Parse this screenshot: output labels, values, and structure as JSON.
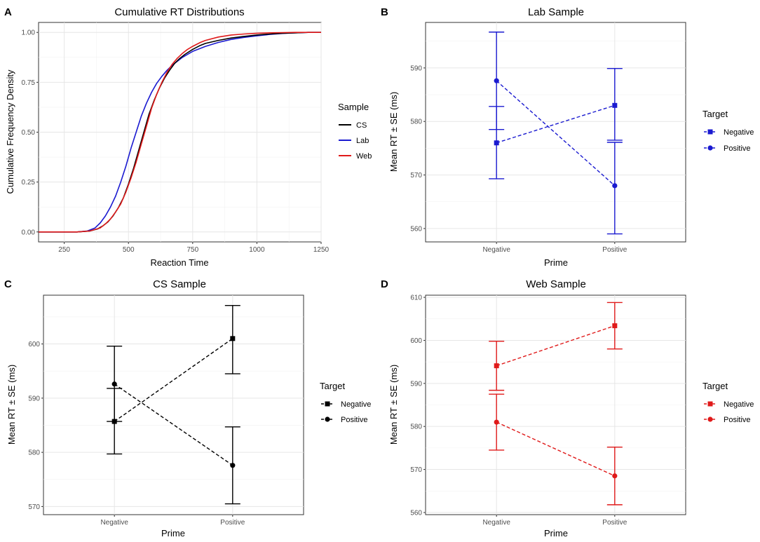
{
  "colors": {
    "CS": "#000000",
    "Lab": "#1a1ad0",
    "Web": "#e01a1a"
  },
  "chart_data": [
    {
      "id": "A",
      "panel_label": "A",
      "type": "line",
      "title": "Cumulative RT Distributions",
      "xlabel": "Reaction Time",
      "ylabel": "Cumulative Frequency Density",
      "xlim": [
        150,
        1250
      ],
      "ylim": [
        -0.05,
        1.05
      ],
      "xticks": [
        250,
        500,
        750,
        1000,
        1250
      ],
      "yticks": [
        0.0,
        0.25,
        0.5,
        0.75,
        1.0
      ],
      "ytick_labels": [
        "0.00",
        "0.25",
        "0.50",
        "0.75",
        "1.00"
      ],
      "legend_title": "Sample",
      "series": [
        {
          "name": "CS",
          "color": "#000000",
          "x": [
            150,
            300,
            350,
            380,
            400,
            420,
            440,
            460,
            480,
            500,
            520,
            540,
            560,
            580,
            600,
            620,
            640,
            660,
            680,
            700,
            720,
            750,
            780,
            800,
            850,
            900,
            950,
            1000,
            1050,
            1100,
            1150,
            1200,
            1250
          ],
          "y": [
            0.0,
            0.0,
            0.005,
            0.015,
            0.03,
            0.05,
            0.08,
            0.12,
            0.17,
            0.24,
            0.32,
            0.41,
            0.5,
            0.59,
            0.66,
            0.72,
            0.77,
            0.81,
            0.845,
            0.87,
            0.89,
            0.915,
            0.935,
            0.945,
            0.96,
            0.972,
            0.98,
            0.987,
            0.992,
            0.996,
            0.998,
            1.0,
            1.0
          ]
        },
        {
          "name": "Lab",
          "color": "#1a1ad0",
          "x": [
            150,
            300,
            340,
            370,
            390,
            410,
            430,
            450,
            470,
            490,
            510,
            530,
            550,
            570,
            590,
            610,
            630,
            650,
            670,
            690,
            710,
            750,
            800,
            850,
            900,
            950,
            1000,
            1050,
            1100,
            1150,
            1200,
            1250
          ],
          "y": [
            0.0,
            0.0,
            0.005,
            0.02,
            0.045,
            0.08,
            0.125,
            0.18,
            0.25,
            0.33,
            0.42,
            0.5,
            0.58,
            0.645,
            0.7,
            0.745,
            0.78,
            0.81,
            0.835,
            0.855,
            0.875,
            0.905,
            0.93,
            0.95,
            0.965,
            0.975,
            0.983,
            0.99,
            0.995,
            0.998,
            1.0,
            1.0
          ]
        },
        {
          "name": "Web",
          "color": "#e01a1a",
          "x": [
            150,
            300,
            350,
            390,
            410,
            430,
            450,
            470,
            490,
            510,
            530,
            550,
            570,
            590,
            610,
            630,
            650,
            670,
            690,
            710,
            730,
            750,
            780,
            800,
            850,
            900,
            950,
            1000,
            1050,
            1100,
            1150,
            1200,
            1250
          ],
          "y": [
            0.0,
            0.0,
            0.005,
            0.02,
            0.04,
            0.065,
            0.1,
            0.14,
            0.2,
            0.27,
            0.35,
            0.44,
            0.53,
            0.62,
            0.69,
            0.75,
            0.8,
            0.84,
            0.87,
            0.895,
            0.915,
            0.93,
            0.95,
            0.96,
            0.977,
            0.987,
            0.992,
            0.996,
            0.998,
            0.999,
            1.0,
            1.0,
            1.0
          ]
        }
      ]
    },
    {
      "id": "B",
      "panel_label": "B",
      "type": "errorbar",
      "title": "Lab Sample",
      "xlabel": "Prime",
      "ylabel": "Mean RT ± SE (ms)",
      "categories": [
        "Negative",
        "Positive"
      ],
      "ylim": [
        557.5,
        598.5
      ],
      "yticks": [
        560,
        570,
        580,
        590
      ],
      "color": "#1a1ad0",
      "legend_title": "Target",
      "series": [
        {
          "name": "Negative",
          "marker": "square",
          "means": [
            576.0,
            583.0
          ],
          "lower": [
            569.3,
            576.5
          ],
          "upper": [
            582.8,
            589.9
          ]
        },
        {
          "name": "Positive",
          "marker": "circle",
          "means": [
            587.6,
            568.0
          ],
          "lower": [
            578.5,
            559.0
          ],
          "upper": [
            596.7,
            576.1
          ]
        }
      ]
    },
    {
      "id": "C",
      "panel_label": "C",
      "type": "errorbar",
      "title": "CS Sample",
      "xlabel": "Prime",
      "ylabel": "Mean RT ± SE (ms)",
      "categories": [
        "Negative",
        "Positive"
      ],
      "ylim": [
        568.5,
        609.0
      ],
      "yticks": [
        570,
        580,
        590,
        600
      ],
      "color": "#000000",
      "legend_title": "Target",
      "series": [
        {
          "name": "Negative",
          "marker": "square",
          "means": [
            585.7,
            601.0
          ],
          "lower": [
            579.7,
            594.5
          ],
          "upper": [
            591.8,
            607.1
          ]
        },
        {
          "name": "Positive",
          "marker": "circle",
          "means": [
            592.6,
            577.6
          ],
          "lower": [
            585.7,
            570.5
          ],
          "upper": [
            599.6,
            584.7
          ]
        }
      ]
    },
    {
      "id": "D",
      "panel_label": "D",
      "type": "errorbar",
      "title": "Web Sample",
      "xlabel": "Prime",
      "ylabel": "Mean RT ± SE (ms)",
      "categories": [
        "Negative",
        "Positive"
      ],
      "ylim": [
        559.5,
        610.5
      ],
      "yticks": [
        560,
        570,
        580,
        590,
        600,
        610
      ],
      "color": "#e01a1a",
      "legend_title": "Target",
      "series": [
        {
          "name": "Negative",
          "marker": "square",
          "means": [
            594.1,
            603.4
          ],
          "lower": [
            588.4,
            598.0
          ],
          "upper": [
            599.8,
            608.8
          ]
        },
        {
          "name": "Positive",
          "marker": "circle",
          "means": [
            581.0,
            568.5
          ],
          "lower": [
            574.5,
            561.8
          ],
          "upper": [
            587.5,
            575.2
          ]
        }
      ]
    }
  ]
}
